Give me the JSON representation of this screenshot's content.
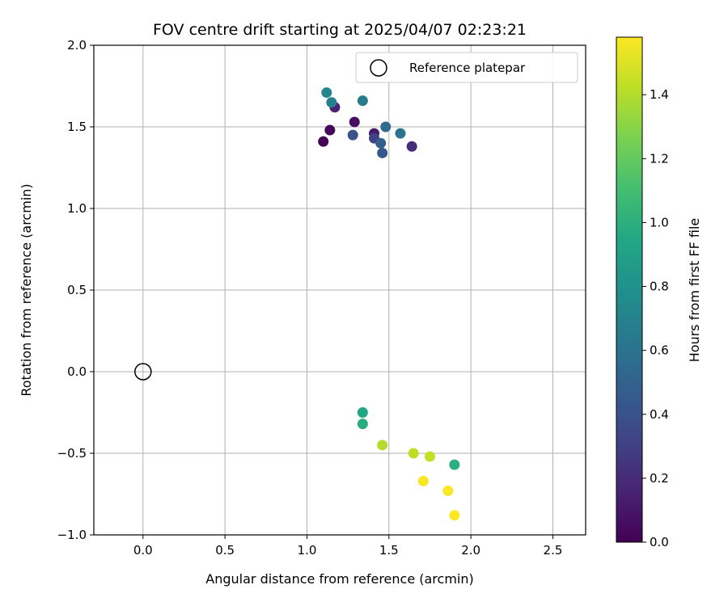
{
  "chart_data": {
    "type": "scatter",
    "title": "FOV centre drift starting at 2025/04/07 02:23:21",
    "xlabel": "Angular distance from reference (arcmin)",
    "ylabel": "Rotation from reference (arcmin)",
    "xlim": [
      -0.3,
      2.7
    ],
    "ylim": [
      -1.0,
      2.0
    ],
    "xticks": [
      0.0,
      0.5,
      1.0,
      1.5,
      2.0,
      2.5
    ],
    "xtick_labels": [
      "0.0",
      "0.5",
      "1.0",
      "1.5",
      "2.0",
      "2.5"
    ],
    "yticks": [
      -1.0,
      -0.5,
      0.0,
      0.5,
      1.0,
      1.5,
      2.0
    ],
    "ytick_labels": [
      "−1.0",
      "−0.5",
      "0.0",
      "0.5",
      "1.0",
      "1.5",
      "2.0"
    ],
    "grid": true,
    "legend": {
      "placement": "top-right",
      "entries": [
        {
          "label": "Reference platepar",
          "marker": "open-circle"
        }
      ]
    },
    "reference_point": {
      "x": 0.0,
      "y": 0.0
    },
    "colorbar": {
      "label": "Hours from first FF file",
      "colormap": "viridis",
      "range": [
        0.0,
        1.58
      ],
      "ticks": [
        0.0,
        0.2,
        0.4,
        0.6,
        0.8,
        1.0,
        1.2,
        1.4
      ],
      "tick_labels": [
        "0.0",
        "0.2",
        "0.4",
        "0.6",
        "0.8",
        "1.0",
        "1.2",
        "1.4"
      ]
    },
    "points": [
      {
        "x": 1.1,
        "y": 1.41,
        "hours": 0.0
      },
      {
        "x": 1.14,
        "y": 1.48,
        "hours": 0.03
      },
      {
        "x": 1.29,
        "y": 1.53,
        "hours": 0.06
      },
      {
        "x": 1.41,
        "y": 1.46,
        "hours": 0.12
      },
      {
        "x": 1.17,
        "y": 1.62,
        "hours": 0.16
      },
      {
        "x": 1.64,
        "y": 1.38,
        "hours": 0.2
      },
      {
        "x": 1.41,
        "y": 1.43,
        "hours": 0.32
      },
      {
        "x": 1.28,
        "y": 1.45,
        "hours": 0.4
      },
      {
        "x": 1.46,
        "y": 1.34,
        "hours": 0.44
      },
      {
        "x": 1.45,
        "y": 1.4,
        "hours": 0.48
      },
      {
        "x": 1.48,
        "y": 1.5,
        "hours": 0.55
      },
      {
        "x": 1.57,
        "y": 1.46,
        "hours": 0.6
      },
      {
        "x": 1.34,
        "y": 1.66,
        "hours": 0.66
      },
      {
        "x": 1.15,
        "y": 1.65,
        "hours": 0.68
      },
      {
        "x": 1.12,
        "y": 1.71,
        "hours": 0.72
      },
      {
        "x": 1.34,
        "y": -0.25,
        "hours": 0.95
      },
      {
        "x": 1.34,
        "y": -0.32,
        "hours": 0.98
      },
      {
        "x": 1.9,
        "y": -0.57,
        "hours": 1.0
      },
      {
        "x": 1.46,
        "y": -0.45,
        "hours": 1.4
      },
      {
        "x": 1.65,
        "y": -0.5,
        "hours": 1.42
      },
      {
        "x": 1.75,
        "y": -0.52,
        "hours": 1.44
      },
      {
        "x": 1.71,
        "y": -0.67,
        "hours": 1.57
      },
      {
        "x": 1.86,
        "y": -0.73,
        "hours": 1.57
      },
      {
        "x": 1.9,
        "y": -0.88,
        "hours": 1.58
      }
    ]
  }
}
